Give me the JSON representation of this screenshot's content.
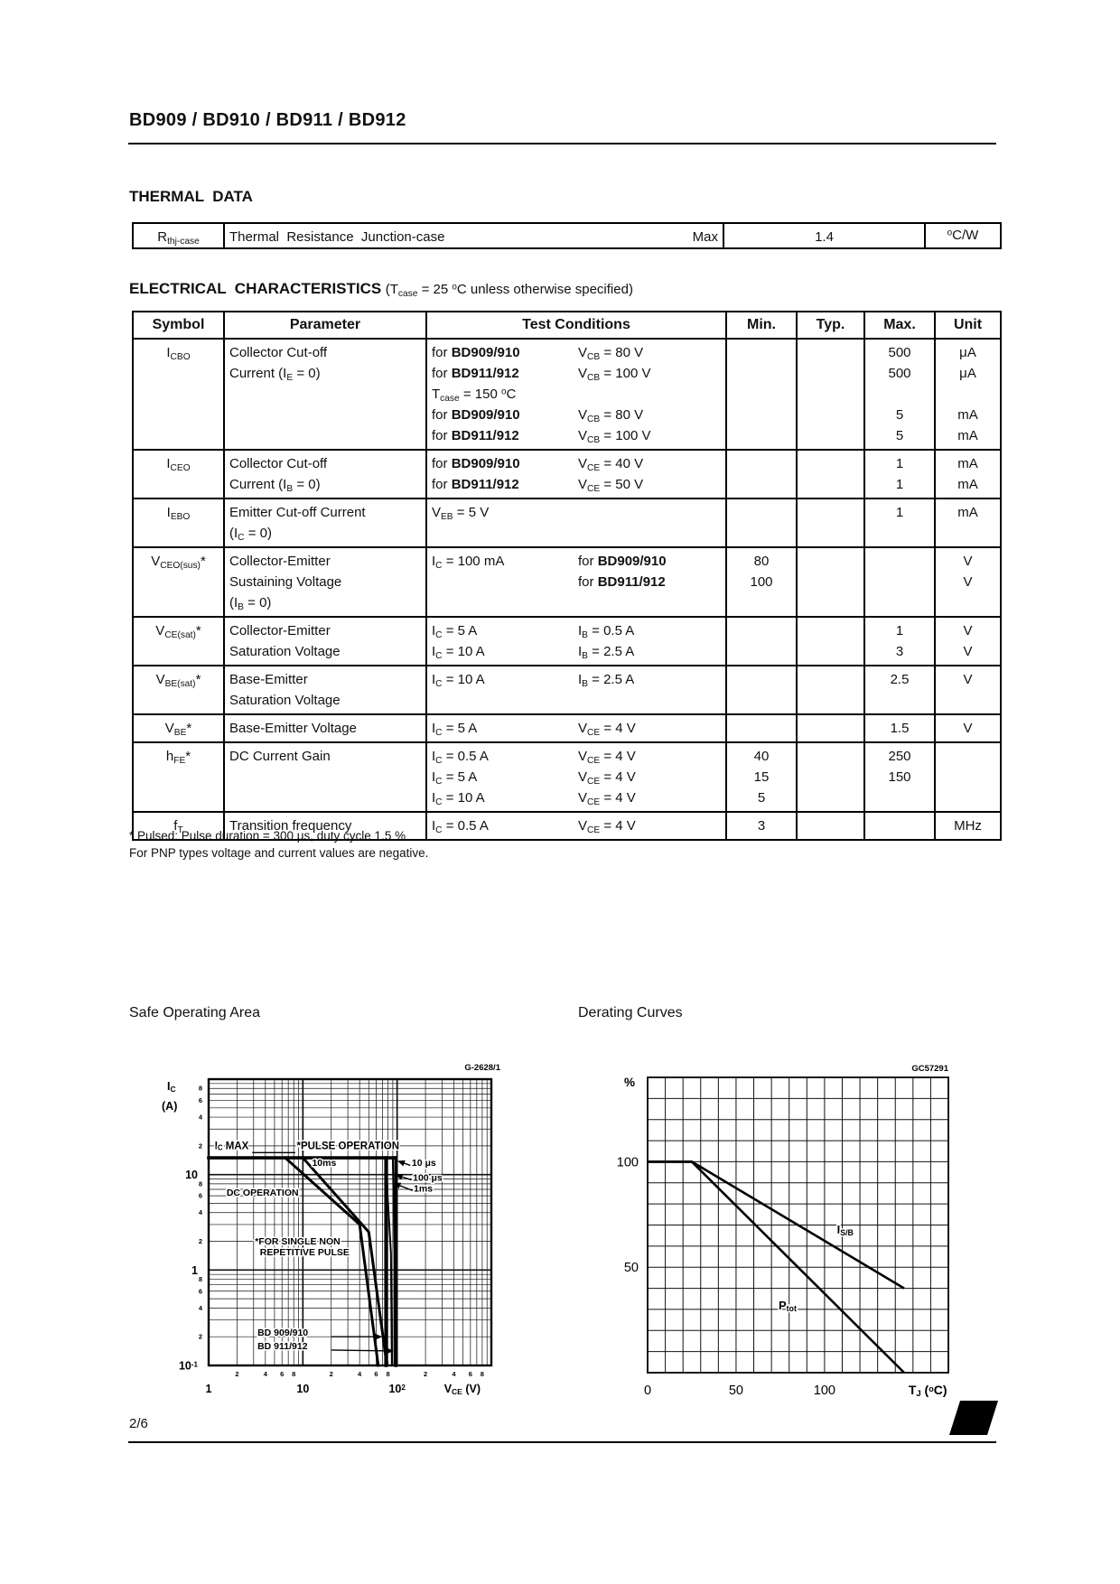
{
  "page": {
    "title": "BD909 / BD910 / BD911 / BD912",
    "page_number": "2/6"
  },
  "icons": {
    "st_logo": "57"
  },
  "thermal": {
    "heading": "THERMAL  DATA",
    "table": {
      "symbol": "R<sub>thj-case</sub>",
      "parameter": "Thermal  Resistance  Junction-case",
      "qualifier": "Max",
      "value": "1.4",
      "unit": "<sup>o</sup>C/W"
    }
  },
  "electrical": {
    "heading": "ELECTRICAL  CHARACTERISTICS",
    "note": "(T<sub>case</sub> = 25 <sup>o</sup>C unless otherwise specified)",
    "columns": [
      "Symbol",
      "Parameter",
      "Test Conditions",
      "Min.",
      "Typ.",
      "Max.",
      "Unit"
    ],
    "rows": [
      {
        "symbol": "I<sub>CBO</sub>",
        "parameter": [
          "Collector Cut-off",
          "Current (I<sub>E</sub> = 0)"
        ],
        "conditions": [
          [
            "for <b>BD909/910</b>",
            "V<sub>CB</sub> = 80 V"
          ],
          [
            "for <b>BD911/912</b>",
            "V<sub>CB</sub> = 100 V"
          ],
          [
            "T<sub>case</sub> = 150 <sup>o</sup>C",
            ""
          ],
          [
            "for <b>BD909/910</b>",
            "V<sub>CB</sub> = 80 V"
          ],
          [
            "for <b>BD911/912</b>",
            "V<sub>CB</sub> = 100 V"
          ]
        ],
        "min": [],
        "typ": [],
        "max": [
          "500",
          "500",
          "",
          "5",
          "5"
        ],
        "unit": [
          "μA",
          "μA",
          "",
          "mA",
          "mA"
        ]
      },
      {
        "symbol": "I<sub>CEO</sub>",
        "parameter": [
          "Collector Cut-off",
          "Current (I<sub>B</sub> = 0)"
        ],
        "conditions": [
          [
            "for <b>BD909/910</b>",
            "V<sub>CE</sub> = 40 V"
          ],
          [
            "for <b>BD911/912</b>",
            "V<sub>CE</sub> = 50 V"
          ]
        ],
        "min": [],
        "typ": [],
        "max": [
          "1",
          "1"
        ],
        "unit": [
          "mA",
          "mA"
        ]
      },
      {
        "symbol": "I<sub>EBO</sub>",
        "parameter": [
          "Emitter Cut-off Current",
          "(I<sub>C</sub> = 0)"
        ],
        "conditions": [
          [
            "V<sub>EB</sub> = 5 V",
            ""
          ]
        ],
        "min": [],
        "typ": [],
        "max": [
          "1"
        ],
        "unit": [
          "mA"
        ]
      },
      {
        "symbol": "V<sub>CEO(sus)</sub>*",
        "parameter": [
          "Collector-Emitter",
          "Sustaining Voltage",
          " (I<sub>B</sub> = 0)"
        ],
        "conditions": [
          [
            "I<sub>C</sub> = 100 mA",
            "for <b>BD909/910</b>"
          ],
          [
            "",
            "for <b>BD911/912</b>"
          ]
        ],
        "min": [
          "80",
          "100"
        ],
        "typ": [],
        "max": [],
        "unit": [
          "V",
          "V"
        ]
      },
      {
        "symbol": "V<sub>CE(sat)</sub>*",
        "parameter": [
          "Collector-Emitter",
          "Saturation Voltage"
        ],
        "conditions": [
          [
            "I<sub>C</sub> = 5 A",
            "I<sub>B</sub> = 0.5 A"
          ],
          [
            "I<sub>C</sub> = 10 A",
            "I<sub>B</sub> = 2.5 A"
          ]
        ],
        "min": [],
        "typ": [],
        "max": [
          "1",
          "3"
        ],
        "unit": [
          "V",
          "V"
        ]
      },
      {
        "symbol": "V<sub>BE(sat)</sub>*",
        "parameter": [
          "Base-Emitter",
          "Saturation Voltage"
        ],
        "conditions": [
          [
            "I<sub>C</sub> = 10 A",
            "I<sub>B</sub> = 2.5 A"
          ]
        ],
        "min": [],
        "typ": [],
        "max": [
          "2.5"
        ],
        "unit": [
          "V"
        ]
      },
      {
        "symbol": "V<sub>BE</sub>*",
        "parameter": [
          "Base-Emitter Voltage"
        ],
        "conditions": [
          [
            "I<sub>C</sub> = 5 A",
            "V<sub>CE</sub> = 4 V"
          ]
        ],
        "min": [],
        "typ": [],
        "max": [
          "1.5"
        ],
        "unit": [
          "V"
        ]
      },
      {
        "symbol": "h<sub>FE</sub>*",
        "parameter": [
          "DC Current Gain"
        ],
        "conditions": [
          [
            "I<sub>C</sub> = 0.5 A",
            "V<sub>CE</sub> = 4 V"
          ],
          [
            "I<sub>C</sub> = 5 A",
            "V<sub>CE</sub> = 4 V"
          ],
          [
            "I<sub>C</sub> = 10 A",
            "V<sub>CE</sub> = 4 V"
          ]
        ],
        "min": [
          "40",
          "15",
          "5"
        ],
        "typ": [],
        "max": [
          "250",
          "150"
        ],
        "unit": []
      },
      {
        "symbol": "f<sub>T</sub>",
        "parameter": [
          "Transition frequency"
        ],
        "conditions": [
          [
            "I<sub>C</sub> = 0.5 A",
            "V<sub>CE</sub> = 4 V"
          ]
        ],
        "min": [
          "3"
        ],
        "typ": [],
        "max": [],
        "unit": [
          "MHz"
        ]
      }
    ]
  },
  "footnotes": [
    "* Pulsed: Pulse duration = 300 μs, duty cycle 1.5 %",
    "For PNP types voltage and current values are negative."
  ],
  "chart_data": [
    {
      "type": "line",
      "title": "Safe Operating Area",
      "figure_code": "G-2628/1",
      "x_axis": {
        "label": "V_{CE} (V)",
        "scale": "log",
        "min": 1,
        "max": 1000,
        "decades": [
          1,
          10,
          100
        ],
        "decade_labels": [
          "1",
          "10",
          "10^{2}"
        ],
        "minor_labels": [
          2,
          4,
          6,
          8
        ]
      },
      "y_axis": {
        "label": "I_{C} (A)",
        "scale": "log",
        "min": 0.1,
        "max": 100,
        "decades": [
          0.1,
          1,
          10
        ],
        "decade_labels": [
          "10^{-1}",
          "1",
          "10"
        ],
        "minor_labels": [
          2,
          4,
          6,
          8
        ]
      },
      "curves": [
        {
          "name": "ic-max",
          "width": 3.6,
          "points": [
            [
              1,
              15
            ],
            [
              97,
              15
            ]
          ]
        },
        {
          "name": "vce-limit-bd909-910",
          "width": 3.6,
          "points": [
            [
              76,
              15
            ],
            [
              76,
              0.1
            ]
          ]
        },
        {
          "name": "vce-limit-bd911-912",
          "width": 3.6,
          "points": [
            [
              97,
              15
            ],
            [
              97,
              0.1
            ]
          ]
        },
        {
          "name": "dc-operation",
          "width": 3,
          "points": [
            [
              6.5,
              15
            ],
            [
              40,
              3
            ],
            [
              63,
              0.1
            ]
          ]
        },
        {
          "name": "pulse-10ms",
          "width": 3,
          "points": [
            [
              10,
              15
            ],
            [
              50,
              2.5
            ],
            [
              78,
              0.1
            ]
          ]
        },
        {
          "name": "pulse-1ms",
          "width": 2,
          "points": [
            [
              75,
              15
            ],
            [
              86,
              1.5
            ],
            [
              88,
              0.1
            ]
          ]
        },
        {
          "name": "pulse-100us",
          "width": 2,
          "points": [
            [
              90,
              15
            ],
            [
              94,
              1.5
            ],
            [
              94,
              0.1
            ]
          ]
        }
      ],
      "annotations": [
        {
          "text": "I_{C} MAX",
          "x": 1.16,
          "y": 18.4,
          "size": 11.5
        },
        {
          "text": "*PULSE  OPERATION",
          "x": 8.6,
          "y": 18.4,
          "size": 11.5,
          "arrow": {
            "from": [
              2.9,
              17
            ],
            "to": [
              8.3,
              17
            ],
            "head": false
          }
        },
        {
          "text": "10ms",
          "x": 12.5,
          "y": 12.3,
          "size": 10.5
        },
        {
          "text": "10 μs",
          "x": 143,
          "y": 12.3,
          "size": 10.5,
          "arrow": {
            "from": [
              138,
              12.5
            ],
            "to": [
              103,
              13.8
            ],
            "head": true
          }
        },
        {
          "text": "100 μs",
          "x": 147,
          "y": 8.6,
          "size": 10.5,
          "arrow": {
            "from": [
              142,
              8.8
            ],
            "to": [
              98,
              9.9
            ],
            "head": true
          }
        },
        {
          "text": "1ms",
          "x": 150,
          "y": 6.6,
          "size": 10.5,
          "arrow": {
            "from": [
              146,
              6.8
            ],
            "to": [
              93,
              8.1
            ],
            "head": true
          }
        },
        {
          "text": "DC  OPERATION",
          "x": 1.55,
          "y": 6.0,
          "size": 10.5
        },
        {
          "text": "*FOR  SINGLE  NON",
          "x": 3.1,
          "y": 1.85,
          "size": 10.5
        },
        {
          "text": "REPETITIVE  PULSE",
          "x": 3.5,
          "y": 1.42,
          "size": 10.5
        },
        {
          "text": "BD 909/910",
          "x": 3.3,
          "y": 0.205,
          "size": 10.5,
          "arrow": {
            "from": [
              20,
              0.2
            ],
            "to": [
              68,
              0.2
            ],
            "head": true
          }
        },
        {
          "text": "BD 911/912",
          "x": 3.3,
          "y": 0.148,
          "size": 10.5,
          "arrow": {
            "from": [
              20,
              0.145
            ],
            "to": [
              90,
              0.142
            ],
            "head": true
          }
        }
      ]
    },
    {
      "type": "line",
      "title": "Derating Curves",
      "figure_code": "GC57291",
      "x_axis": {
        "label": "T_{J} (^{o}C)",
        "scale": "linear",
        "min": 0,
        "max": 170,
        "grid_step": 10,
        "ticks": [
          0,
          50,
          100
        ]
      },
      "y_axis": {
        "label": "%",
        "scale": "linear",
        "min": 0,
        "max": 140,
        "grid_step": 10,
        "ticks": [
          100,
          50
        ]
      },
      "series": [
        {
          "name": "I_{S/B}",
          "width": 2.6,
          "points": [
            [
              0,
              100
            ],
            [
              25,
              100
            ],
            [
              145,
              40
            ]
          ],
          "label_pos": [
            107,
            66
          ]
        },
        {
          "name": "P_{tot}",
          "width": 2.6,
          "points": [
            [
              0,
              100
            ],
            [
              25,
              100
            ],
            [
              145,
              0
            ]
          ],
          "label_pos": [
            74,
            30
          ]
        }
      ]
    }
  ]
}
